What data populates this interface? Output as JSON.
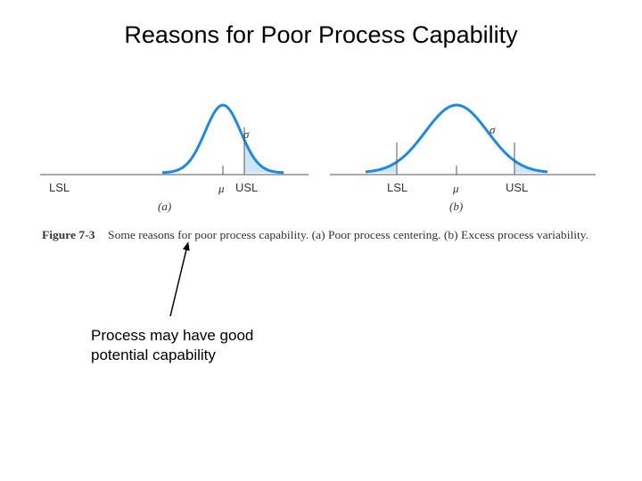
{
  "title": "Reasons for Poor Process Capability",
  "figure": {
    "caption_number": "Figure 7-3",
    "caption_text": "Some reasons for poor process capability. (a) Poor process centering. (b) Excess process variability.",
    "panel_a": {
      "panel_label": "(a)",
      "sigma_label": "σ",
      "mu_label": "μ",
      "lsl_label": "LSL",
      "usl_label": "USL"
    },
    "panel_b": {
      "panel_label": "(b)",
      "sigma_label": "σ",
      "mu_label": "μ",
      "lsl_label": "LSL",
      "usl_label": "USL"
    },
    "colors": {
      "curve": "#1e88e5",
      "tail_fill": "#cfe6fa",
      "axis": "#555555"
    }
  },
  "callout": {
    "line1": "Process may have good",
    "line2": "potential capability"
  }
}
